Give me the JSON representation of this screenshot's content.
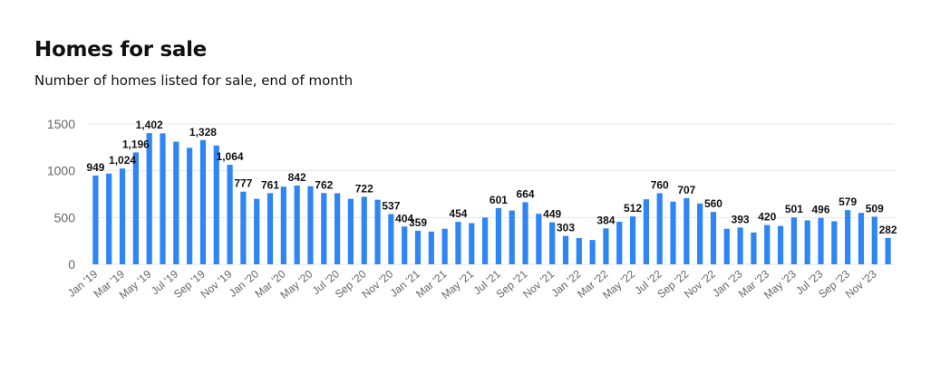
{
  "header": {
    "title": "Homes for sale",
    "subtitle": "Number of homes listed for sale, end of month"
  },
  "colors": {
    "bar": "#2e86f5",
    "grid": "#e6e6e6"
  },
  "chart_data": {
    "type": "bar",
    "title": "Homes for sale",
    "subtitle": "Number of homes listed for sale, end of month",
    "xlabel": "",
    "ylabel": "",
    "ylim": [
      0,
      1500
    ],
    "yticks": [
      0,
      500,
      1000,
      1500
    ],
    "grid": true,
    "categories": [
      "Jan '19",
      "Feb '19",
      "Mar '19",
      "Apr '19",
      "May '19",
      "Jun '19",
      "Jul '19",
      "Aug '19",
      "Sep '19",
      "Oct '19",
      "Nov '19",
      "Dec '19",
      "Jan '20",
      "Feb '20",
      "Mar '20",
      "Apr '20",
      "May '20",
      "Jun '20",
      "Jul '20",
      "Aug '20",
      "Sep '20",
      "Oct '20",
      "Nov '20",
      "Dec '20",
      "Jan '21",
      "Feb '21",
      "Mar '21",
      "Apr '21",
      "May '21",
      "Jun '21",
      "Jul '21",
      "Aug '21",
      "Sep '21",
      "Oct '21",
      "Nov '21",
      "Dec '21",
      "Jan '22",
      "Feb '22",
      "Mar '22",
      "Apr '22",
      "May '22",
      "Jun '22",
      "Jul '22",
      "Aug '22",
      "Sep '22",
      "Oct '22",
      "Nov '22",
      "Dec '22",
      "Jan '23",
      "Feb '23",
      "Mar '23",
      "Apr '23",
      "May '23",
      "Jun '23",
      "Jul '23",
      "Aug '23",
      "Sep '23",
      "Oct '23",
      "Nov '23",
      "Dec '23"
    ],
    "tick_labels": [
      "Jan '19",
      "",
      "Mar '19",
      "",
      "May '19",
      "",
      "Jul '19",
      "",
      "Sep '19",
      "",
      "Nov '19",
      "",
      "Jan '20",
      "",
      "Mar '20",
      "",
      "May '20",
      "",
      "Jul '20",
      "",
      "Sep '20",
      "",
      "Nov '20",
      "",
      "Jan '21",
      "",
      "Mar '21",
      "",
      "May '21",
      "",
      "Jul '21",
      "",
      "Sep '21",
      "",
      "Nov '21",
      "",
      "Jan '22",
      "",
      "Mar '22",
      "",
      "May '22",
      "",
      "Jul '22",
      "",
      "Sep '22",
      "",
      "Nov '22",
      "",
      "Jan '23",
      "",
      "Mar '23",
      "",
      "May '23",
      "",
      "Jul '23",
      "",
      "Sep '23",
      "",
      "Nov '23",
      ""
    ],
    "values": [
      949,
      970,
      1024,
      1196,
      1402,
      1400,
      1310,
      1245,
      1328,
      1270,
      1064,
      777,
      700,
      761,
      830,
      842,
      835,
      762,
      760,
      700,
      722,
      690,
      537,
      404,
      359,
      350,
      380,
      454,
      440,
      500,
      601,
      575,
      664,
      540,
      449,
      303,
      280,
      260,
      384,
      455,
      512,
      695,
      760,
      670,
      707,
      650,
      560,
      380,
      393,
      340,
      420,
      410,
      501,
      470,
      496,
      460,
      579,
      550,
      509,
      282
    ],
    "data_labels": [
      "949",
      "",
      "1,024",
      "1,196",
      "1,402",
      "",
      "",
      "",
      "1,328",
      "",
      "1,064",
      "777",
      "",
      "761",
      "",
      "842",
      "",
      "762",
      "",
      "",
      "722",
      "",
      "537",
      "404",
      "359",
      "",
      "",
      "454",
      "",
      "",
      "601",
      "",
      "664",
      "",
      "449",
      "303",
      "",
      "",
      "384",
      "",
      "512",
      "",
      "760",
      "",
      "707",
      "",
      "560",
      "",
      "393",
      "",
      "420",
      "",
      "501",
      "",
      "496",
      "",
      "579",
      "",
      "509",
      "282"
    ]
  }
}
